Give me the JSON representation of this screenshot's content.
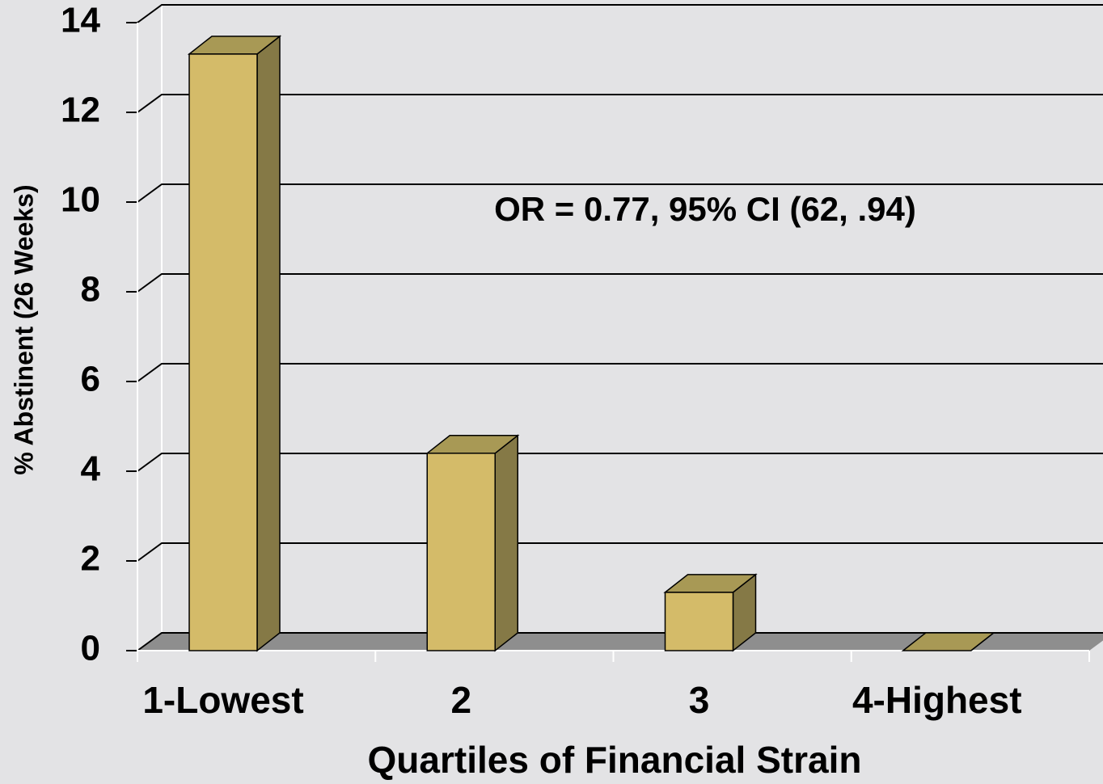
{
  "chart_data": {
    "type": "bar3d",
    "x_label": "Quartiles of Financial Strain",
    "y_label": "% Abstinent (26 Weeks)",
    "annotation": "OR = 0.77,   95% CI (62, .94)",
    "categories": [
      "1-Lowest",
      "2",
      "3",
      "4-Highest"
    ],
    "values": [
      13.3,
      4.4,
      1.3,
      0
    ],
    "color": "#d4bb69",
    "ylim": [
      0,
      14
    ],
    "yticks": [
      0,
      2,
      4,
      6,
      8,
      10,
      12,
      14
    ],
    "grid": true
  }
}
